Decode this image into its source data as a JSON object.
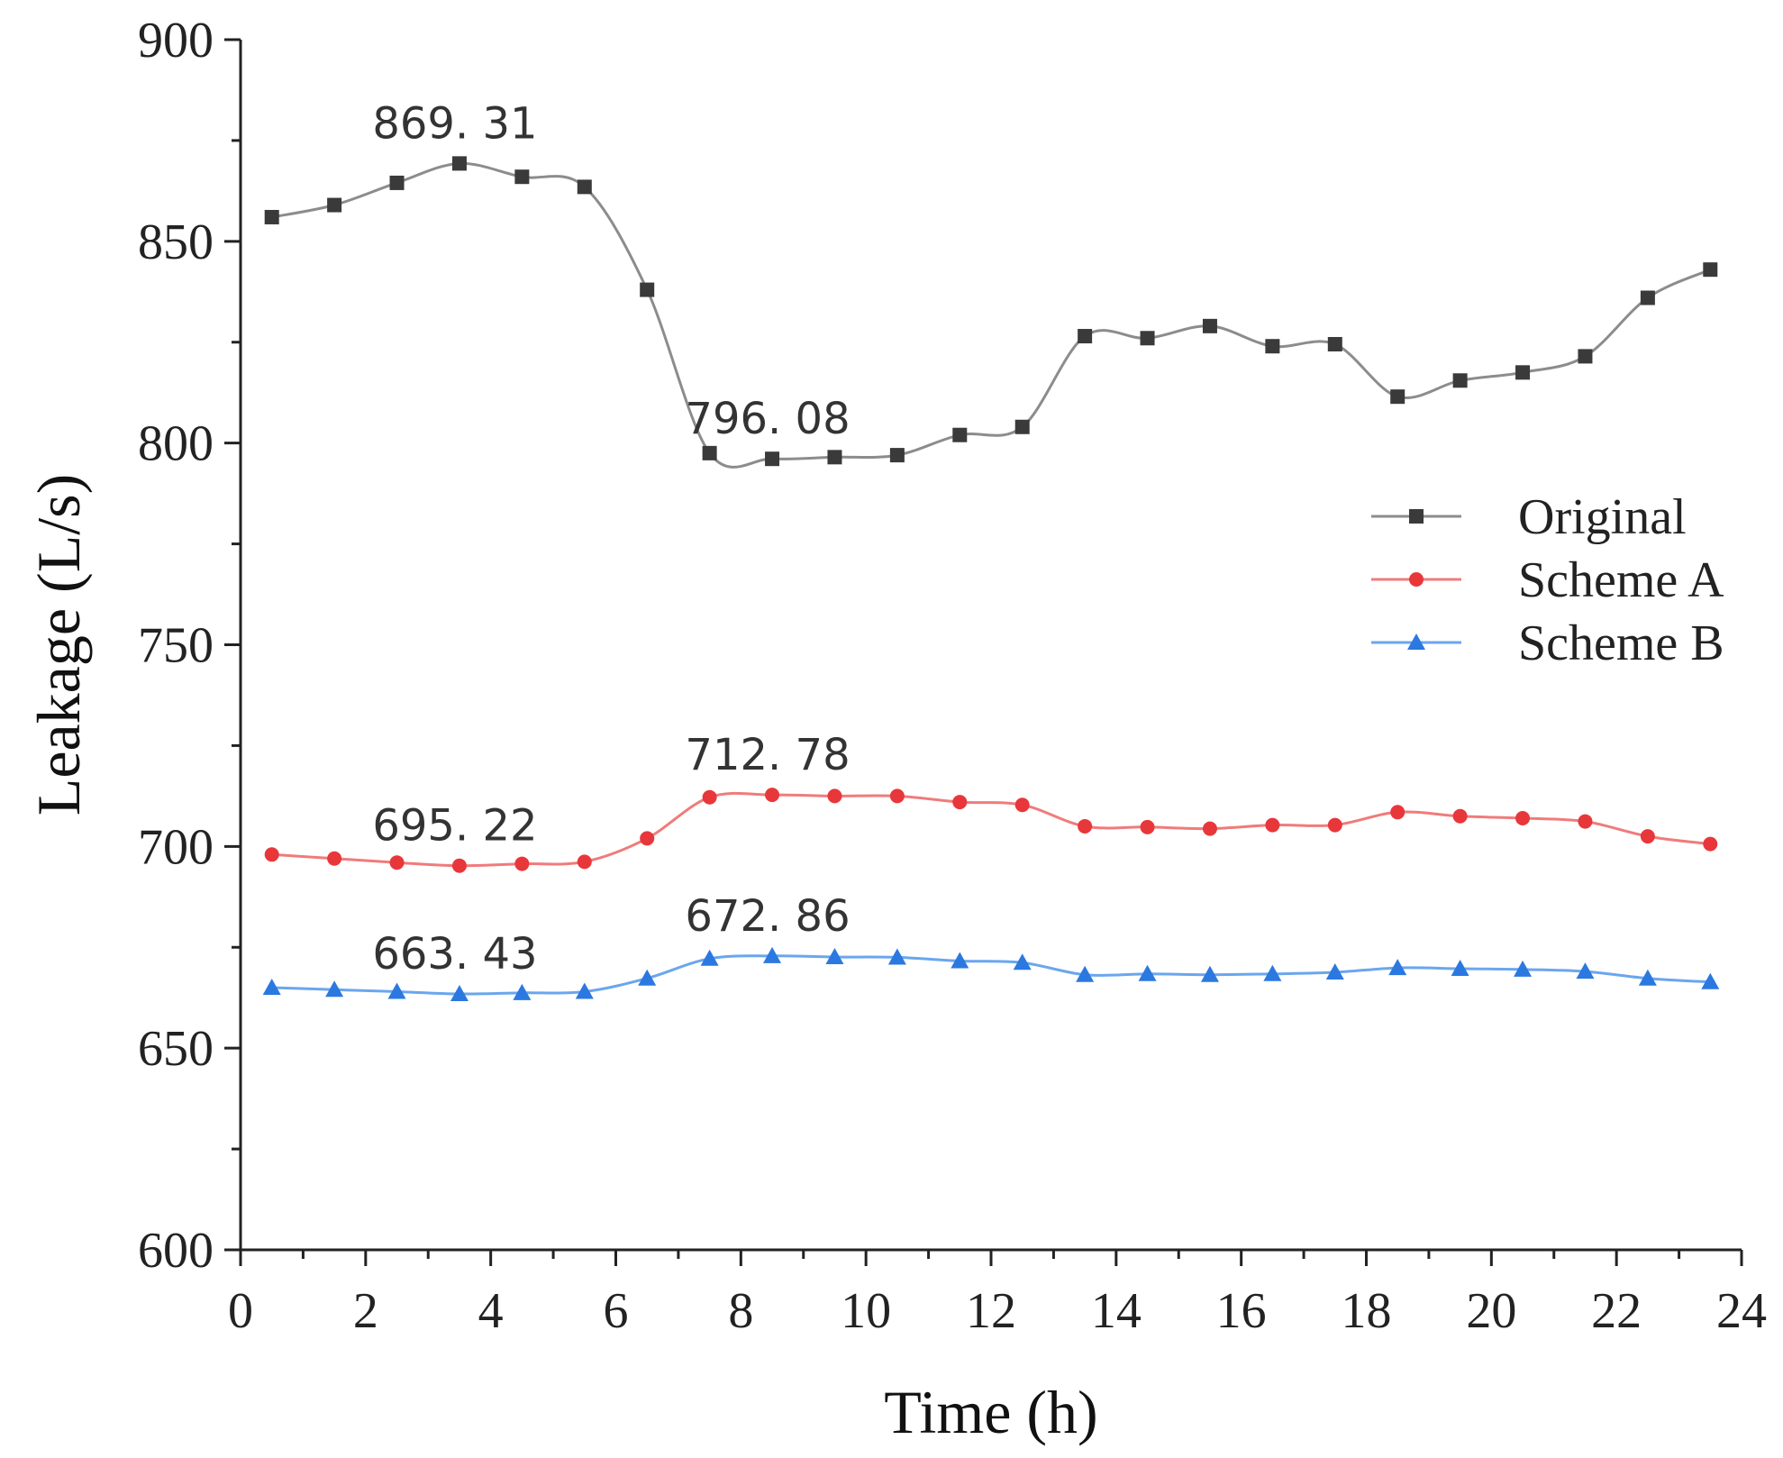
{
  "chart_data": {
    "type": "line",
    "title": "",
    "xlabel": "Time (h)",
    "ylabel": "Leakage (L/s)",
    "xlim": [
      0,
      24
    ],
    "ylim": [
      600,
      900
    ],
    "xticks": [
      0,
      2,
      4,
      6,
      8,
      10,
      12,
      14,
      16,
      18,
      20,
      22,
      24
    ],
    "yticks": [
      600,
      650,
      700,
      750,
      800,
      850,
      900
    ],
    "x": [
      0.5,
      1.5,
      2.5,
      3.5,
      4.5,
      5.5,
      6.5,
      7.5,
      8.5,
      9.5,
      10.5,
      11.5,
      12.5,
      13.5,
      14.5,
      15.5,
      16.5,
      17.5,
      18.5,
      19.5,
      20.5,
      21.5,
      22.5,
      23.5
    ],
    "series": [
      {
        "name": "Original",
        "color": "#3a3a3a",
        "line_color": "#8c8c8c",
        "marker": "square",
        "values": [
          856,
          859,
          864.5,
          869.31,
          866,
          863.5,
          838,
          797.5,
          796.08,
          796.5,
          797,
          802,
          804,
          826.5,
          826,
          829,
          824,
          824.5,
          811.5,
          815.5,
          817.5,
          821.5,
          836,
          843
        ]
      },
      {
        "name": "Scheme A",
        "color": "#e8373a",
        "line_color": "#f07b7b",
        "marker": "circle",
        "values": [
          698,
          697,
          696,
          695.22,
          695.7,
          696.2,
          702,
          712.2,
          712.78,
          712.5,
          712.5,
          711,
          710.3,
          705,
          704.8,
          704.4,
          705.3,
          705.3,
          708.5,
          707.5,
          707,
          706.2,
          702.5,
          700.6
        ]
      },
      {
        "name": "Scheme B",
        "color": "#2b78e0",
        "line_color": "#6aa6ee",
        "marker": "triangle",
        "values": [
          665,
          664.5,
          664,
          663.43,
          663.7,
          664,
          667.3,
          672.2,
          672.86,
          672.6,
          672.5,
          671.6,
          671.2,
          668.2,
          668.4,
          668.2,
          668.4,
          668.8,
          669.9,
          669.7,
          669.5,
          669,
          667.3,
          666.4
        ]
      }
    ],
    "annotations": [
      {
        "text": "869. 31",
        "x": 3.5,
        "y": 869.31
      },
      {
        "text": "796. 08",
        "x": 8.5,
        "y": 796.08
      },
      {
        "text": "695. 22",
        "x": 3.5,
        "y": 695.22
      },
      {
        "text": "712. 78",
        "x": 8.5,
        "y": 712.78
      },
      {
        "text": "663. 43",
        "x": 3.5,
        "y": 663.43
      },
      {
        "text": "672. 86",
        "x": 8.5,
        "y": 672.86
      }
    ],
    "legend": "right",
    "grid": false
  }
}
